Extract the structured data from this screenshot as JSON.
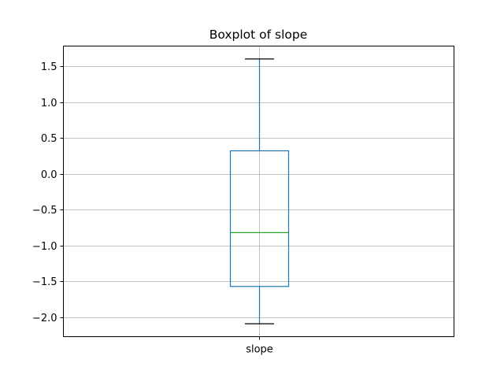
{
  "chart_data": {
    "type": "box",
    "title": "Boxplot of slope",
    "xlabel": "",
    "ylabel": "",
    "categories": [
      "slope"
    ],
    "series": [
      {
        "whisker_low": -2.09,
        "q1": -1.57,
        "median": -0.82,
        "q3": 0.32,
        "whisker_high": 1.6
      }
    ],
    "ylim": [
      -2.27,
      1.78
    ],
    "y_ticks": [
      1.5,
      1.0,
      0.5,
      0.0,
      -0.5,
      -1.0,
      -1.5,
      -2.0
    ],
    "y_tick_labels": [
      "1.5",
      "1.0",
      "0.5",
      "0.0",
      "−0.5",
      "−1.0",
      "−1.5",
      "−2.0"
    ],
    "grid": true,
    "colors": {
      "box": "#1f77b4",
      "median": "#2ca02c",
      "caps": "#000000",
      "grid": "#b0b0b0",
      "axes": "#000000"
    }
  }
}
